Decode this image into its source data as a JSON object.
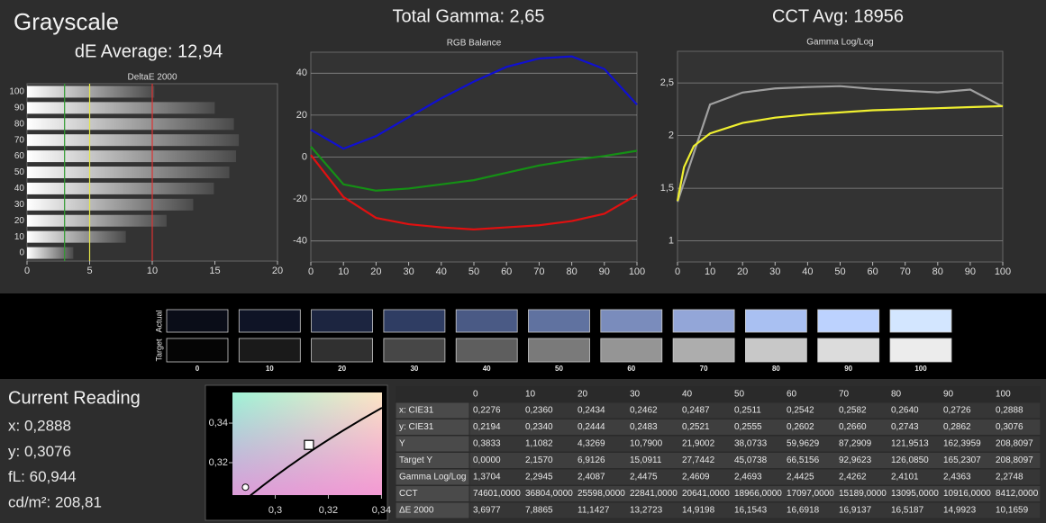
{
  "header": {
    "title": "Grayscale",
    "de_average": "dE Average: 12,94",
    "total_gamma": "Total Gamma: 2,65",
    "cct_avg": "CCT Avg: 18956"
  },
  "deltae_chart": {
    "type": "bar",
    "title": "DeltaE 2000",
    "categories": [
      "100",
      "90",
      "80",
      "70",
      "60",
      "50",
      "40",
      "30",
      "20",
      "10",
      "0"
    ],
    "values": [
      10.1659,
      14.9923,
      16.5187,
      16.9137,
      16.6918,
      16.1543,
      14.9198,
      13.2723,
      11.1427,
      7.8865,
      3.6977
    ],
    "xlim": [
      0,
      20
    ],
    "xticks": [
      0,
      5,
      10,
      15,
      20
    ],
    "thresholds": [
      {
        "value": 3,
        "color": "#2f9a2f"
      },
      {
        "value": 5,
        "color": "#e6e64a"
      },
      {
        "value": 10,
        "color": "#dd3333"
      }
    ]
  },
  "rgb_chart": {
    "type": "line",
    "title": "RGB Balance",
    "x": [
      0,
      10,
      20,
      30,
      40,
      50,
      60,
      70,
      80,
      90,
      100
    ],
    "series": [
      {
        "color": "#1010d0",
        "values": [
          13,
          4,
          10,
          19,
          28,
          36,
          43,
          47,
          48,
          42,
          25
        ]
      },
      {
        "color": "#159015",
        "values": [
          5,
          -13,
          -16,
          -15,
          -13,
          -11,
          -7.5,
          -4,
          -1.5,
          0.5,
          3
        ]
      },
      {
        "color": "#e01010",
        "values": [
          1,
          -19,
          -29,
          -32,
          -33.5,
          -34.5,
          -33.5,
          -32.5,
          -30.5,
          -27,
          -18
        ]
      }
    ],
    "xlim": [
      0,
      100
    ],
    "xticks": [
      0,
      10,
      20,
      30,
      40,
      50,
      60,
      70,
      80,
      90,
      100
    ],
    "ylim": [
      -50,
      50
    ],
    "yticks": [
      -40,
      -20,
      0,
      20,
      40
    ],
    "grid": true
  },
  "gamma_chart": {
    "type": "line",
    "title": "Gamma Log/Log",
    "series": [
      {
        "color": "#a0a0a0",
        "x": [
          0,
          10,
          20,
          30,
          40,
          50,
          60,
          70,
          80,
          90,
          100
        ],
        "values": [
          1.3704,
          2.2945,
          2.4087,
          2.4475,
          2.4609,
          2.4693,
          2.4425,
          2.4262,
          2.4101,
          2.4363,
          2.2748
        ]
      },
      {
        "color": "#f0f030",
        "x": [
          0,
          2,
          5,
          10,
          20,
          30,
          40,
          50,
          60,
          70,
          80,
          90,
          100
        ],
        "values": [
          1.38,
          1.7,
          1.9,
          2.02,
          2.12,
          2.17,
          2.2,
          2.22,
          2.24,
          2.25,
          2.26,
          2.27,
          2.28
        ]
      }
    ],
    "xlim": [
      0,
      100
    ],
    "xticks": [
      0,
      10,
      20,
      30,
      40,
      50,
      60,
      70,
      80,
      90,
      100
    ],
    "ylim": [
      0.8,
      2.8
    ],
    "yticks": [
      1,
      {
        "value": 1.5,
        "label": "1,5"
      },
      2,
      {
        "value": 2.5,
        "label": "2,5"
      }
    ],
    "grid": true
  },
  "swatches": {
    "actual_label": "Actual",
    "target_label": "Target",
    "categories": [
      "0",
      "10",
      "20",
      "30",
      "40",
      "50",
      "60",
      "70",
      "80",
      "90",
      "100"
    ],
    "actual_colors": [
      "#0a0d18",
      "#0f1426",
      "#1c2540",
      "#2f3d63",
      "#4a5a85",
      "#6072a0",
      "#7a8cbc",
      "#93a6d8",
      "#a9c0f2",
      "#bcd2fe",
      "#d3e6ff"
    ],
    "target_colors": [
      "#050505",
      "#1a1a1a",
      "#303030",
      "#474747",
      "#5e5e5e",
      "#7a7a7a",
      "#959595",
      "#adadad",
      "#c8c8c8",
      "#dcdcdc",
      "#ececec"
    ]
  },
  "current_reading": {
    "title": "Current Reading",
    "lines": [
      "x: 0,2888",
      "y: 0,3076",
      "fL: 60,944",
      "cd/m²: 208,81"
    ]
  },
  "cie_chart": {
    "type": "scatter",
    "xlim": [
      0.2839,
      0.3402
    ],
    "xticks": [
      {
        "value": 0.3,
        "label": "0,3"
      },
      {
        "value": 0.32,
        "label": "0,32"
      },
      {
        "value": 0.34,
        "label": "0,34"
      }
    ],
    "ylim": [
      0.3036,
      0.3555
    ],
    "yticks": [
      {
        "value": 0.32,
        "label": "0,32"
      },
      {
        "value": 0.34,
        "label": "0,34"
      }
    ],
    "target": {
      "x": 0.3127,
      "y": 0.329
    },
    "measured": {
      "x": 0.2888,
      "y": 0.3076
    }
  },
  "table": {
    "columns": [
      "0",
      "10",
      "20",
      "30",
      "40",
      "50",
      "60",
      "70",
      "80",
      "90",
      "100"
    ],
    "rows": [
      {
        "label": "x: CIE31",
        "cells": [
          "0,2276",
          "0,2360",
          "0,2434",
          "0,2462",
          "0,2487",
          "0,2511",
          "0,2542",
          "0,2582",
          "0,2640",
          "0,2726",
          "0,2888"
        ]
      },
      {
        "label": "y: CIE31",
        "cells": [
          "0,2194",
          "0,2340",
          "0,2444",
          "0,2483",
          "0,2521",
          "0,2555",
          "0,2602",
          "0,2660",
          "0,2743",
          "0,2862",
          "0,3076"
        ]
      },
      {
        "label": "Y",
        "cells": [
          "0,3833",
          "1,1082",
          "4,3269",
          "10,7900",
          "21,9002",
          "38,0733",
          "59,9629",
          "87,2909",
          "121,9513",
          "162,3959",
          "208,8097"
        ]
      },
      {
        "label": "Target Y",
        "cells": [
          "0,0000",
          "2,1570",
          "6,9126",
          "15,0911",
          "27,7442",
          "45,0738",
          "66,5156",
          "92,9623",
          "126,0850",
          "165,2307",
          "208,8097"
        ]
      },
      {
        "label": "Gamma Log/Log",
        "cells": [
          "1,3704",
          "2,2945",
          "2,4087",
          "2,4475",
          "2,4609",
          "2,4693",
          "2,4425",
          "2,4262",
          "2,4101",
          "2,4363",
          "2,2748"
        ]
      },
      {
        "label": "CCT",
        "cells": [
          "74601,0000",
          "36804,0000",
          "25598,0000",
          "22841,0000",
          "20641,0000",
          "18966,0000",
          "17097,0000",
          "15189,0000",
          "13095,0000",
          "10916,0000",
          "8412,0000"
        ]
      },
      {
        "label": "ΔE 2000",
        "cells": [
          "3,6977",
          "7,8865",
          "11,1427",
          "13,2723",
          "14,9198",
          "16,1543",
          "16,6918",
          "16,9137",
          "16,5187",
          "14,9923",
          "10,1659"
        ]
      }
    ]
  }
}
